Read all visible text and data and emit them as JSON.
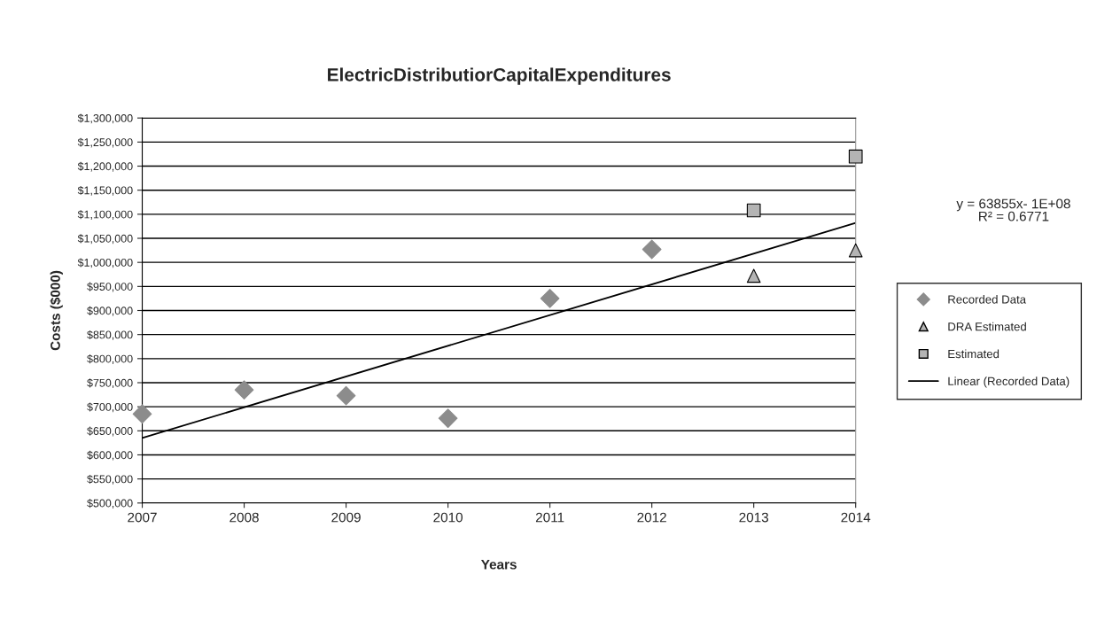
{
  "chart_data": {
    "type": "scatter",
    "title": "ElectricDistributiorCapitalExpenditures",
    "xlabel": "Years",
    "ylabel": "Costs ($000)",
    "xlim": [
      2007,
      2014
    ],
    "xticks": [
      2007,
      2008,
      2009,
      2010,
      2011,
      2012,
      2013,
      2014
    ],
    "ylim": [
      500000,
      1300000
    ],
    "yticks": [
      {
        "value": 500000,
        "label": "$500,000"
      },
      {
        "value": 550000,
        "label": "$550,000"
      },
      {
        "value": 600000,
        "label": "$600,000"
      },
      {
        "value": 650000,
        "label": "$650,000"
      },
      {
        "value": 700000,
        "label": "$700,000"
      },
      {
        "value": 750000,
        "label": "$750,000"
      },
      {
        "value": 800000,
        "label": "$800,000"
      },
      {
        "value": 850000,
        "label": "$850,000"
      },
      {
        "value": 900000,
        "label": "$900,000"
      },
      {
        "value": 950000,
        "label": "$950,000"
      },
      {
        "value": 1000000,
        "label": "$1,000,000"
      },
      {
        "value": 1050000,
        "label": "$1,050,000"
      },
      {
        "value": 1100000,
        "label": "$1,100,000"
      },
      {
        "value": 1150000,
        "label": "$1,150,000"
      },
      {
        "value": 1200000,
        "label": "$1,200,000"
      },
      {
        "value": 1250000,
        "label": "$1,250,000"
      },
      {
        "value": 1300000,
        "label": "$1,300,000"
      }
    ],
    "grid": "y",
    "legend": "right",
    "series": [
      {
        "name": "Recorded Data",
        "marker": "diamond",
        "color": "#8c8c8c",
        "x": [
          2007,
          2008,
          2009,
          2010,
          2011,
          2012
        ],
        "values": [
          685000,
          735000,
          723000,
          676000,
          925000,
          1027000
        ]
      },
      {
        "name": "DRA Estimated",
        "marker": "triangle",
        "color": "#b4b4b4",
        "x": [
          2013,
          2014
        ],
        "values": [
          972000,
          1025000
        ]
      },
      {
        "name": "Estimated",
        "marker": "square",
        "color": "#b4b4b4",
        "x": [
          2013,
          2014
        ],
        "values": [
          1108000,
          1220000
        ]
      },
      {
        "name": "Linear (Recorded Data)",
        "type": "line",
        "marker": "none",
        "line_style": "solid",
        "color": "#000000",
        "x": [
          2007,
          2014
        ],
        "values": [
          635000,
          1082000
        ]
      }
    ],
    "annotations": [
      "y = 63855x- 1E+08\nR² = 0.6771"
    ]
  }
}
